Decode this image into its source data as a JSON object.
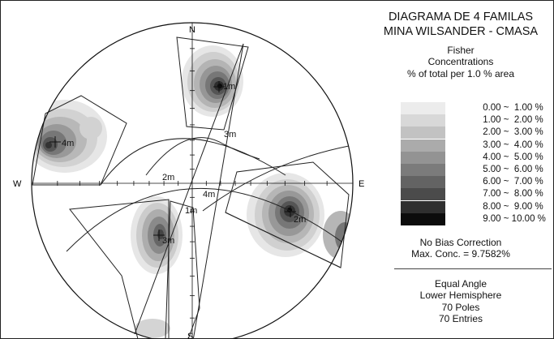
{
  "title_line1": "DIAGRAMA DE 4 FAMILAS",
  "title_line2": "MINA WILSANDER - CMASA",
  "method": "Fisher",
  "concentrations_label": "Concentrations",
  "area_label": "% of total per 1.0 % area",
  "legend": [
    {
      "range": " 0.00 ~  1.00 %",
      "color": "#ececec"
    },
    {
      "range": " 1.00 ~  2.00 %",
      "color": "#d8d8d8"
    },
    {
      "range": " 2.00 ~  3.00 %",
      "color": "#c2c2c2"
    },
    {
      "range": " 3.00 ~  4.00 %",
      "color": "#ababab"
    },
    {
      "range": " 4.00 ~  5.00 %",
      "color": "#939393"
    },
    {
      "range": " 5.00 ~  6.00 %",
      "color": "#7b7b7b"
    },
    {
      "range": " 6.00 ~  7.00 %",
      "color": "#636363"
    },
    {
      "range": " 7.00 ~  8.00 %",
      "color": "#4b4b4b"
    },
    {
      "range": " 8.00 ~  9.00 %",
      "color": "#2f2f2f"
    },
    {
      "range": " 9.00 ~ 10.00 %",
      "color": "#0c0c0c"
    }
  ],
  "bias_correction": "No Bias Correction",
  "max_conc": "Max. Conc. = 9.7582%",
  "projection": "Equal Angle",
  "hemisphere": "Lower Hemisphere",
  "poles": "70 Poles",
  "entries": "70 Entries",
  "compass": {
    "n": "N",
    "s": "S",
    "e": "E",
    "w": "W"
  },
  "set_labels": {
    "set1": "1m",
    "set2": "2m",
    "set3": "3m",
    "set4": "4m",
    "set2_pole": "2m",
    "set3_pole": "3m",
    "set4_pole": "4m",
    "set1_pole": "1m"
  }
}
